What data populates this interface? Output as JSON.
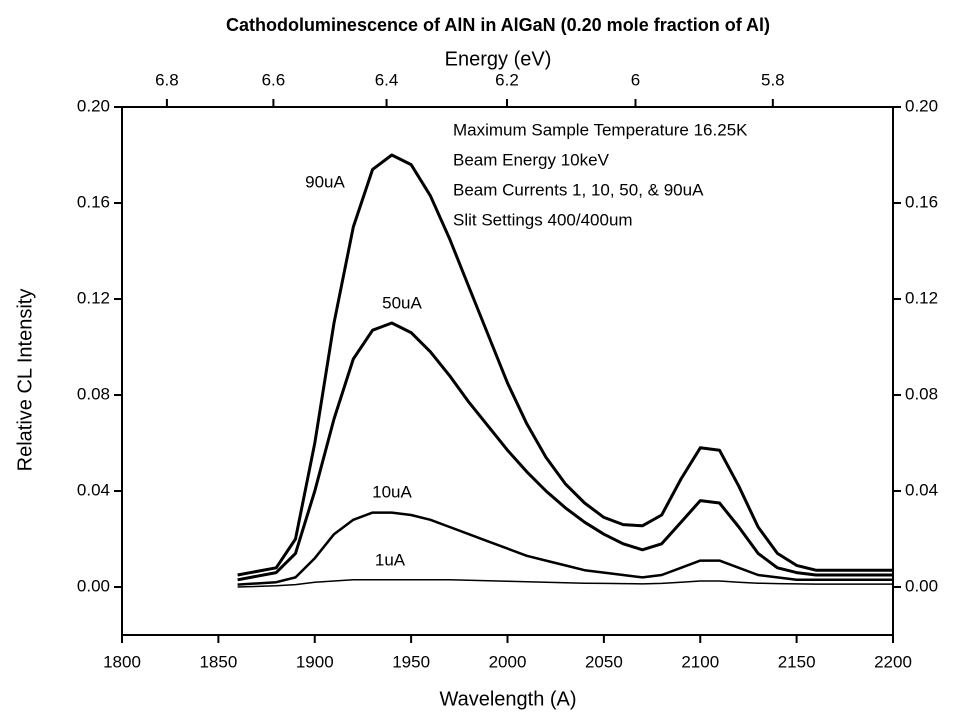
{
  "chart_data": {
    "type": "line",
    "title": "Cathodoluminescence of AlN in AlGaN (0.20 mole fraction of Al)",
    "xlabel": "Wavelength (A)",
    "x2label": "Energy (eV)",
    "ylabel": "Relative CL Intensity",
    "annotations": [
      "Maximum Sample Temperature 16.25K",
      "Beam Energy 10keV",
      "Beam Currents 1, 10, 50, & 90uA",
      "Slit Settings 400/400um"
    ],
    "x": [
      1860,
      1880,
      1890,
      1900,
      1910,
      1920,
      1930,
      1940,
      1950,
      1960,
      1970,
      1980,
      1990,
      2000,
      2010,
      2020,
      2030,
      2040,
      2050,
      2060,
      2070,
      2080,
      2090,
      2100,
      2110,
      2120,
      2130,
      2140,
      2150,
      2160,
      2180,
      2200
    ],
    "series": [
      {
        "name": "90uA",
        "color": "#000000",
        "values": [
          0.005,
          0.008,
          0.02,
          0.06,
          0.11,
          0.15,
          0.174,
          0.18,
          0.176,
          0.163,
          0.145,
          0.125,
          0.105,
          0.085,
          0.068,
          0.054,
          0.043,
          0.035,
          0.029,
          0.026,
          0.0255,
          0.03,
          0.045,
          0.058,
          0.057,
          0.042,
          0.025,
          0.014,
          0.009,
          0.007,
          0.007,
          0.007
        ]
      },
      {
        "name": "50uA",
        "color": "#000000",
        "values": [
          0.003,
          0.006,
          0.014,
          0.04,
          0.07,
          0.095,
          0.107,
          0.11,
          0.106,
          0.098,
          0.088,
          0.077,
          0.067,
          0.057,
          0.048,
          0.04,
          0.033,
          0.027,
          0.022,
          0.018,
          0.0155,
          0.018,
          0.027,
          0.036,
          0.035,
          0.025,
          0.014,
          0.008,
          0.006,
          0.005,
          0.005,
          0.005
        ]
      },
      {
        "name": "10uA",
        "color": "#000000",
        "values": [
          0.001,
          0.002,
          0.004,
          0.012,
          0.022,
          0.028,
          0.031,
          0.031,
          0.03,
          0.028,
          0.025,
          0.022,
          0.019,
          0.016,
          0.013,
          0.011,
          0.009,
          0.007,
          0.006,
          0.005,
          0.004,
          0.005,
          0.008,
          0.011,
          0.011,
          0.008,
          0.005,
          0.004,
          0.003,
          0.003,
          0.003,
          0.003
        ]
      },
      {
        "name": "1uA",
        "color": "#000000",
        "values": [
          0.0,
          0.0005,
          0.001,
          0.002,
          0.0025,
          0.003,
          0.003,
          0.003,
          0.003,
          0.003,
          0.003,
          0.0028,
          0.0026,
          0.0024,
          0.0022,
          0.002,
          0.0018,
          0.0016,
          0.0015,
          0.0014,
          0.0013,
          0.0015,
          0.002,
          0.0025,
          0.0025,
          0.002,
          0.0016,
          0.0014,
          0.0013,
          0.0012,
          0.0012,
          0.0012
        ]
      }
    ],
    "xlim": [
      1800,
      2200
    ],
    "xticks": [
      1800,
      1850,
      1900,
      1950,
      2000,
      2050,
      2100,
      2150,
      2200
    ],
    "x2lim": [
      6.888,
      5.636
    ],
    "x2scale": "reciprocal",
    "x2ticks": [
      6.8,
      6.6,
      6.4,
      6.2,
      6,
      5.8
    ],
    "ylim": [
      -0.02,
      0.2
    ],
    "yticks": [
      {
        "value": 0,
        "label": "0.00"
      },
      {
        "value": 0.04,
        "label": "0.04"
      },
      {
        "value": 0.08,
        "label": "0.08"
      },
      {
        "value": 0.12,
        "label": "0.12"
      },
      {
        "value": 0.16,
        "label": "0.16"
      },
      {
        "value": 0.2,
        "label": "0.20"
      }
    ],
    "y2lim": [
      -0.02,
      0.2
    ],
    "y2ticks": [
      {
        "value": 0,
        "label": "0.00"
      },
      {
        "value": 0.04,
        "label": "0.04"
      },
      {
        "value": 0.08,
        "label": "0.08"
      },
      {
        "value": 0.12,
        "label": "0.12"
      },
      {
        "value": 0.16,
        "label": "0.16"
      },
      {
        "value": 0.2,
        "label": "0.20"
      }
    ],
    "grid": false
  }
}
